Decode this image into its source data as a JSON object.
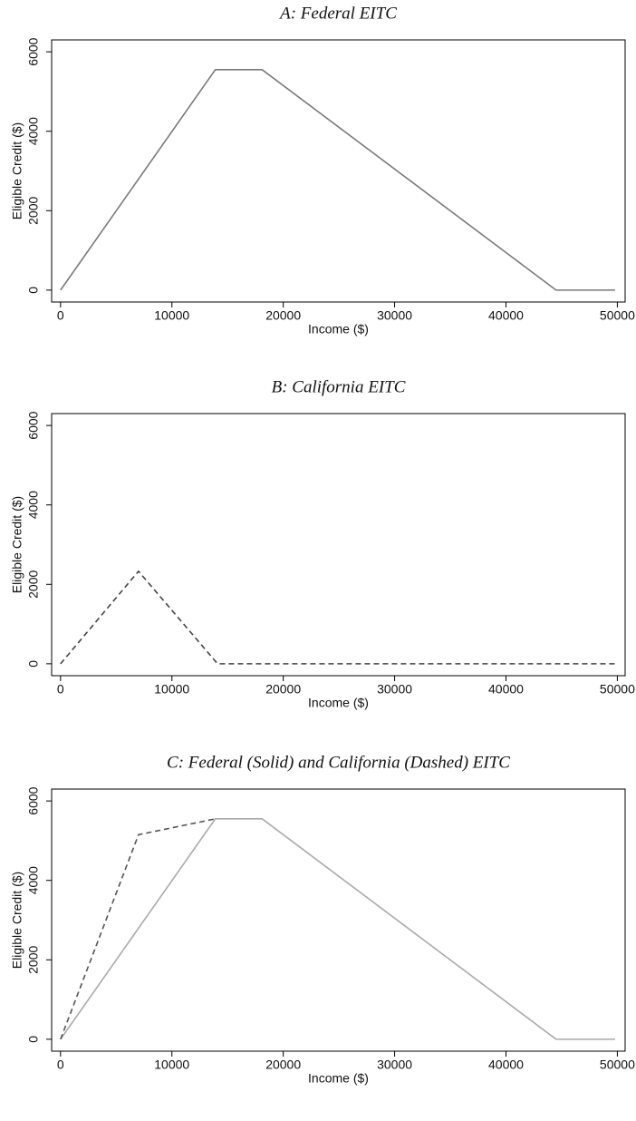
{
  "chart_data": [
    {
      "type": "line",
      "title": "A: Federal EITC",
      "x_label": "Income ($)",
      "y_label": "Eligible Credit ($)",
      "xlim": [
        -800,
        50700
      ],
      "ylim": [
        -300,
        6300
      ],
      "xticks": [
        0,
        10000,
        20000,
        30000,
        40000,
        50000
      ],
      "yticks": [
        0,
        2000,
        4000,
        6000
      ],
      "series": [
        {
          "color": "#7a7a7a",
          "dash": false,
          "x": [
            0,
            13900,
            18100,
            44500,
            49800
          ],
          "values": [
            0,
            5550,
            5550,
            0,
            0
          ]
        }
      ]
    },
    {
      "type": "line",
      "title": "B: California EITC",
      "x_label": "Income ($)",
      "y_label": "Eligible Credit ($)",
      "xlim": [
        -800,
        50700
      ],
      "ylim": [
        -300,
        6300
      ],
      "xticks": [
        0,
        10000,
        20000,
        30000,
        40000,
        50000
      ],
      "yticks": [
        0,
        2000,
        4000,
        6000
      ],
      "series": [
        {
          "color": "#444444",
          "dash": true,
          "x": [
            0,
            7000,
            14100,
            49800
          ],
          "values": [
            0,
            2330,
            0,
            0
          ]
        }
      ]
    },
    {
      "type": "line",
      "title": "C: Federal (Solid) and California (Dashed) EITC",
      "x_label": "Income ($)",
      "y_label": "Eligible Credit ($)",
      "xlim": [
        -800,
        50700
      ],
      "ylim": [
        -300,
        6300
      ],
      "xticks": [
        0,
        10000,
        20000,
        30000,
        40000,
        50000
      ],
      "yticks": [
        0,
        2000,
        4000,
        6000
      ],
      "series": [
        {
          "color": "#aaaaaa",
          "dash": false,
          "x": [
            0,
            13900,
            18100,
            44500,
            49800
          ],
          "values": [
            0,
            5550,
            5550,
            0,
            0
          ]
        },
        {
          "color": "#555555",
          "dash": true,
          "x": [
            0,
            7000,
            13900
          ],
          "values": [
            0,
            5150,
            5550
          ]
        }
      ]
    }
  ]
}
